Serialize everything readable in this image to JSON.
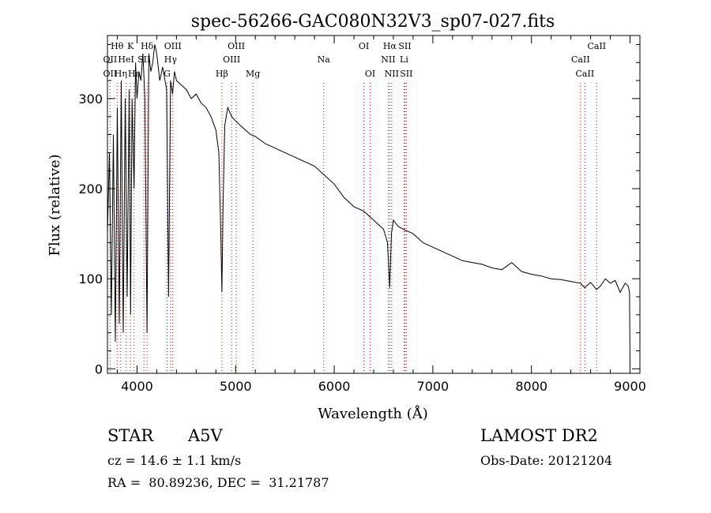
{
  "chart_data": {
    "type": "line",
    "title": "spec-56266-GAC080N32V3_sp07-027.fits",
    "xlabel": "Wavelength (Å)",
    "ylabel": "Flux (relative)",
    "xlim": [
      3700,
      9100
    ],
    "ylim": [
      -5,
      370
    ],
    "xticks": [
      4000,
      5000,
      6000,
      7000,
      8000,
      9000
    ],
    "yticks": [
      0,
      100,
      200,
      300
    ],
    "series": [
      {
        "x": [
          3700,
          3720,
          3740,
          3760,
          3780,
          3800,
          3820,
          3840,
          3860,
          3880,
          3900,
          3920,
          3935,
          3950,
          3970,
          3985,
          4000,
          4020,
          4040,
          4060,
          4080,
          4101,
          4120,
          4140,
          4160,
          4180,
          4200,
          4230,
          4260,
          4300,
          4320,
          4340,
          4360,
          4380,
          4400,
          4450,
          4500,
          4550,
          4600,
          4650,
          4700,
          4750,
          4800,
          4830,
          4850,
          4861,
          4872,
          4890,
          4920,
          4960,
          5000,
          5050,
          5100,
          5150,
          5200,
          5300,
          5400,
          5500,
          5600,
          5700,
          5800,
          5900,
          6000,
          6100,
          6200,
          6300,
          6400,
          6500,
          6540,
          6563,
          6580,
          6600,
          6650,
          6700,
          6800,
          6900,
          7000,
          7100,
          7200,
          7300,
          7400,
          7500,
          7600,
          7700,
          7800,
          7900,
          8000,
          8100,
          8200,
          8300,
          8400,
          8500,
          8540,
          8600,
          8660,
          8700,
          8750,
          8800,
          8850,
          8900,
          8950,
          8980,
          8995,
          9000
        ],
        "y": [
          150,
          240,
          60,
          260,
          30,
          290,
          50,
          320,
          40,
          300,
          80,
          310,
          60,
          300,
          200,
          340,
          300,
          330,
          320,
          350,
          300,
          40,
          350,
          330,
          340,
          360,
          350,
          320,
          335,
          310,
          80,
          320,
          305,
          330,
          320,
          315,
          310,
          300,
          305,
          295,
          290,
          280,
          265,
          240,
          150,
          85,
          180,
          270,
          290,
          280,
          275,
          270,
          265,
          260,
          258,
          250,
          245,
          240,
          235,
          230,
          225,
          215,
          205,
          190,
          180,
          175,
          165,
          155,
          140,
          90,
          150,
          165,
          158,
          155,
          150,
          140,
          135,
          130,
          125,
          120,
          118,
          116,
          112,
          110,
          118,
          108,
          105,
          103,
          100,
          99,
          97,
          95,
          90,
          96,
          88,
          92,
          100,
          95,
          98,
          85,
          95,
          92,
          85,
          0
        ]
      }
    ],
    "line_labels": [
      {
        "label": "Hθ",
        "x": 3798,
        "row": 1
      },
      {
        "label": "K",
        "x": 3934,
        "row": 1
      },
      {
        "label": "Hδ",
        "x": 4102,
        "row": 1
      },
      {
        "label": "OII",
        "x": 3727,
        "row": 2
      },
      {
        "label": "HeI",
        "x": 3889,
        "row": 2
      },
      {
        "label": "SII",
        "x": 4070,
        "row": 2
      },
      {
        "label": "OII",
        "x": 3727,
        "row": 3
      },
      {
        "label": "Hη",
        "x": 3835,
        "row": 3
      },
      {
        "label": "Hε",
        "x": 3970,
        "row": 3
      },
      {
        "label": "OIII",
        "x": 4363,
        "row": 1
      },
      {
        "label": "Hγ",
        "x": 4340,
        "row": 2
      },
      {
        "label": "G",
        "x": 4305,
        "row": 3
      },
      {
        "label": "OIII",
        "x": 5007,
        "row": 1
      },
      {
        "label": "OIII",
        "x": 4959,
        "row": 2
      },
      {
        "label": "Hβ",
        "x": 4861,
        "row": 3
      },
      {
        "label": "Mg",
        "x": 5175,
        "row": 3
      },
      {
        "label": "Na",
        "x": 5893,
        "row": 2
      },
      {
        "label": "OI",
        "x": 6300,
        "row": 1
      },
      {
        "label": "OI",
        "x": 6364,
        "row": 3
      },
      {
        "label": "Hα",
        "x": 6563,
        "row": 1
      },
      {
        "label": "SII",
        "x": 6716,
        "row": 1
      },
      {
        "label": "NII",
        "x": 6548,
        "row": 2
      },
      {
        "label": "Li",
        "x": 6708,
        "row": 2
      },
      {
        "label": "NII",
        "x": 6583,
        "row": 3
      },
      {
        "label": "SII",
        "x": 6731,
        "row": 3
      },
      {
        "label": "CaII",
        "x": 8662,
        "row": 1
      },
      {
        "label": "CaII",
        "x": 8498,
        "row": 2
      },
      {
        "label": "CaII",
        "x": 8542,
        "row": 3
      }
    ],
    "line_markers": [
      3727,
      3798,
      3835,
      3889,
      3934,
      3970,
      4070,
      4102,
      4305,
      4340,
      4363,
      4861,
      4959,
      5007,
      5175,
      5893,
      6300,
      6364,
      6548,
      6563,
      6583,
      6708,
      6716,
      6731,
      8498,
      8542,
      8662
    ],
    "marker_color": "#d00000",
    "grid": false
  },
  "info": {
    "object_class": "STAR",
    "subclass": "A5V",
    "survey": "LAMOST DR2",
    "redshift": "cz = 14.6 ± 1.1 km/s",
    "obs_date": "Obs-Date: 20121204",
    "coords": "RA =  80.89236, DEC =  31.21787"
  }
}
